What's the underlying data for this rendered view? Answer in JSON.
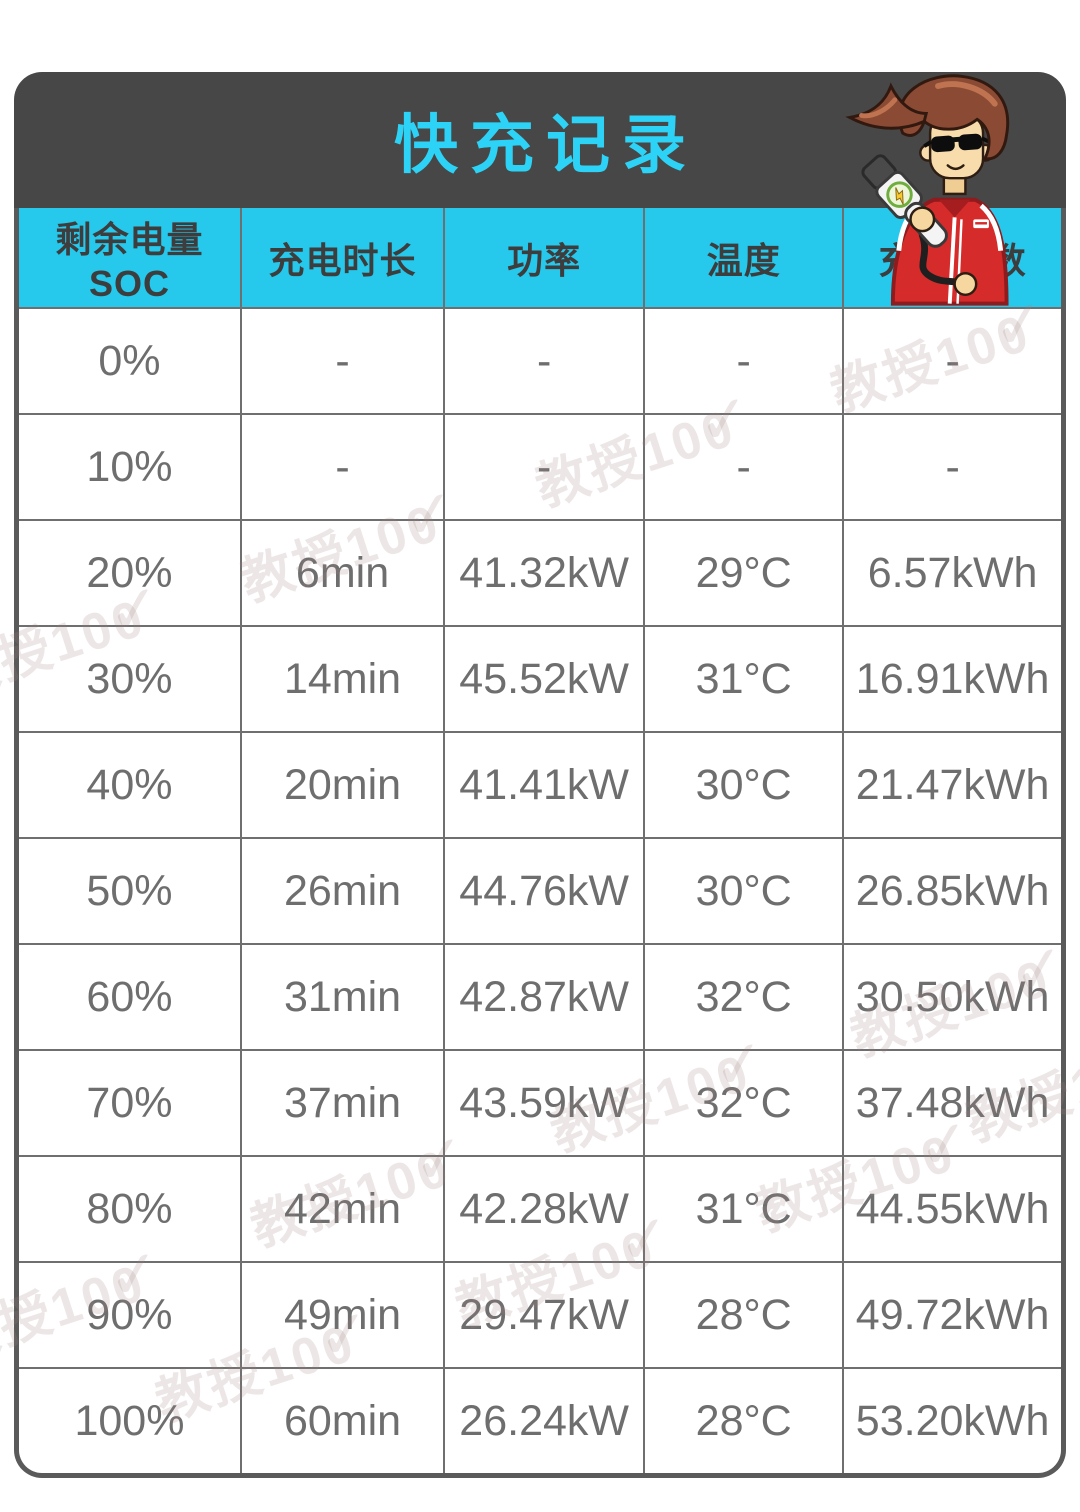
{
  "header": {
    "title": "快充记录",
    "band_color": "#474747",
    "title_color": "#2dd3f7"
  },
  "watermark": {
    "text": "教授100",
    "check": "✓"
  },
  "icons": {
    "mascot": "ev-charger-mascot"
  },
  "chart_data": {
    "type": "table",
    "title": "快充记录",
    "columns": [
      "剩余电量SOC",
      "充电时长",
      "功率",
      "温度",
      "充电度数"
    ],
    "rows": [
      [
        "0%",
        "-",
        "-",
        "-",
        "-"
      ],
      [
        "10%",
        "-",
        "-",
        "-",
        "-"
      ],
      [
        "20%",
        "6min",
        "41.32kW",
        "29°C",
        "6.57kWh"
      ],
      [
        "30%",
        "14min",
        "45.52kW",
        "31°C",
        "16.91kWh"
      ],
      [
        "40%",
        "20min",
        "41.41kW",
        "30°C",
        "21.47kWh"
      ],
      [
        "50%",
        "26min",
        "44.76kW",
        "30°C",
        "26.85kWh"
      ],
      [
        "60%",
        "31min",
        "42.87kW",
        "32°C",
        "30.50kWh"
      ],
      [
        "70%",
        "37min",
        "43.59kW",
        "32°C",
        "37.48kWh"
      ],
      [
        "80%",
        "42min",
        "42.28kW",
        "31°C",
        "44.55kWh"
      ],
      [
        "90%",
        "49min",
        "29.47kW",
        "28°C",
        "49.72kWh"
      ],
      [
        "100%",
        "60min",
        "26.24kW",
        "28°C",
        "53.20kWh"
      ]
    ],
    "colors": {
      "header_bg": "#26c8ec",
      "header_text": "#3d3d3d",
      "grid": "#6f6f6f",
      "cell_text": "#6e6e6e",
      "outer_border": "#5a5a5a"
    }
  }
}
